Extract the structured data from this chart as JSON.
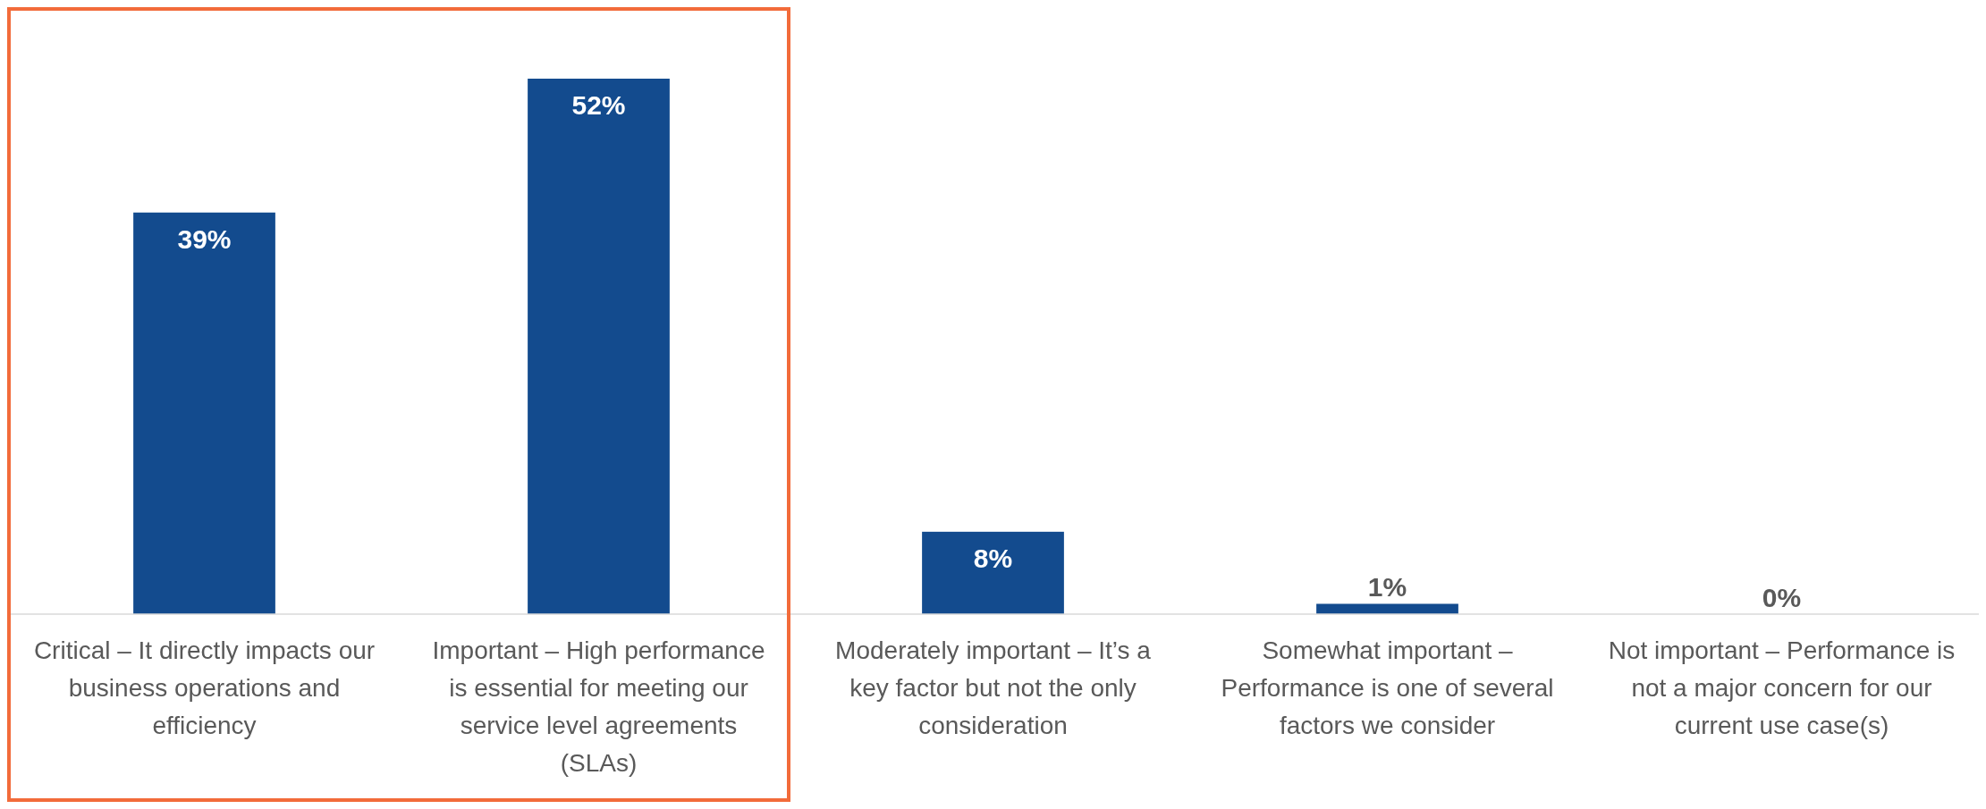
{
  "chart_data": {
    "type": "bar",
    "categories": [
      "Critical – It directly impacts our business operations and efficiency",
      "Important – High performance is essential for meeting our service level agreements (SLAs)",
      "Moderately important – It’s a key factor but not the only consideration",
      "Somewhat important – Performance is one of several factors we consider",
      "Not important – Performance is not a major concern for our current use case(s)"
    ],
    "values": [
      39,
      52,
      8,
      1,
      0
    ],
    "value_labels": [
      "39%",
      "52%",
      "8%",
      "1%",
      "0%"
    ],
    "color": "#134b8e"
  }
}
